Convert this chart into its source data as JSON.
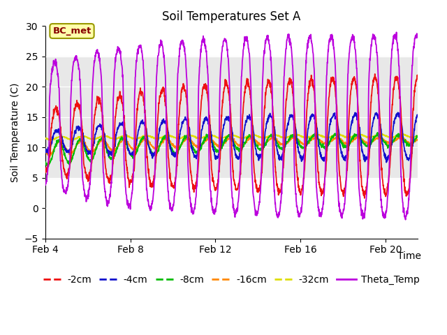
{
  "title": "Soil Temperatures Set A",
  "ylabel": "Soil Temperature (C)",
  "ylim": [
    -5,
    30
  ],
  "n_days": 17.5,
  "shaded_region": [
    5,
    25
  ],
  "shaded_color": "#e8e8e8",
  "annotation_text": "BC_met",
  "line_colors": {
    "2cm": "#ee1111",
    "4cm": "#1111cc",
    "8cm": "#00bb00",
    "16cm": "#ff8800",
    "32cm": "#dddd00",
    "theta": "#bb00dd"
  },
  "legend_labels": [
    "-2cm",
    "-4cm",
    "-8cm",
    "-16cm",
    "-32cm",
    "Theta_Temp"
  ],
  "title_fontsize": 12,
  "label_fontsize": 10,
  "tick_fontsize": 10,
  "legend_fontsize": 10,
  "bg_color": "#f0f0f0"
}
